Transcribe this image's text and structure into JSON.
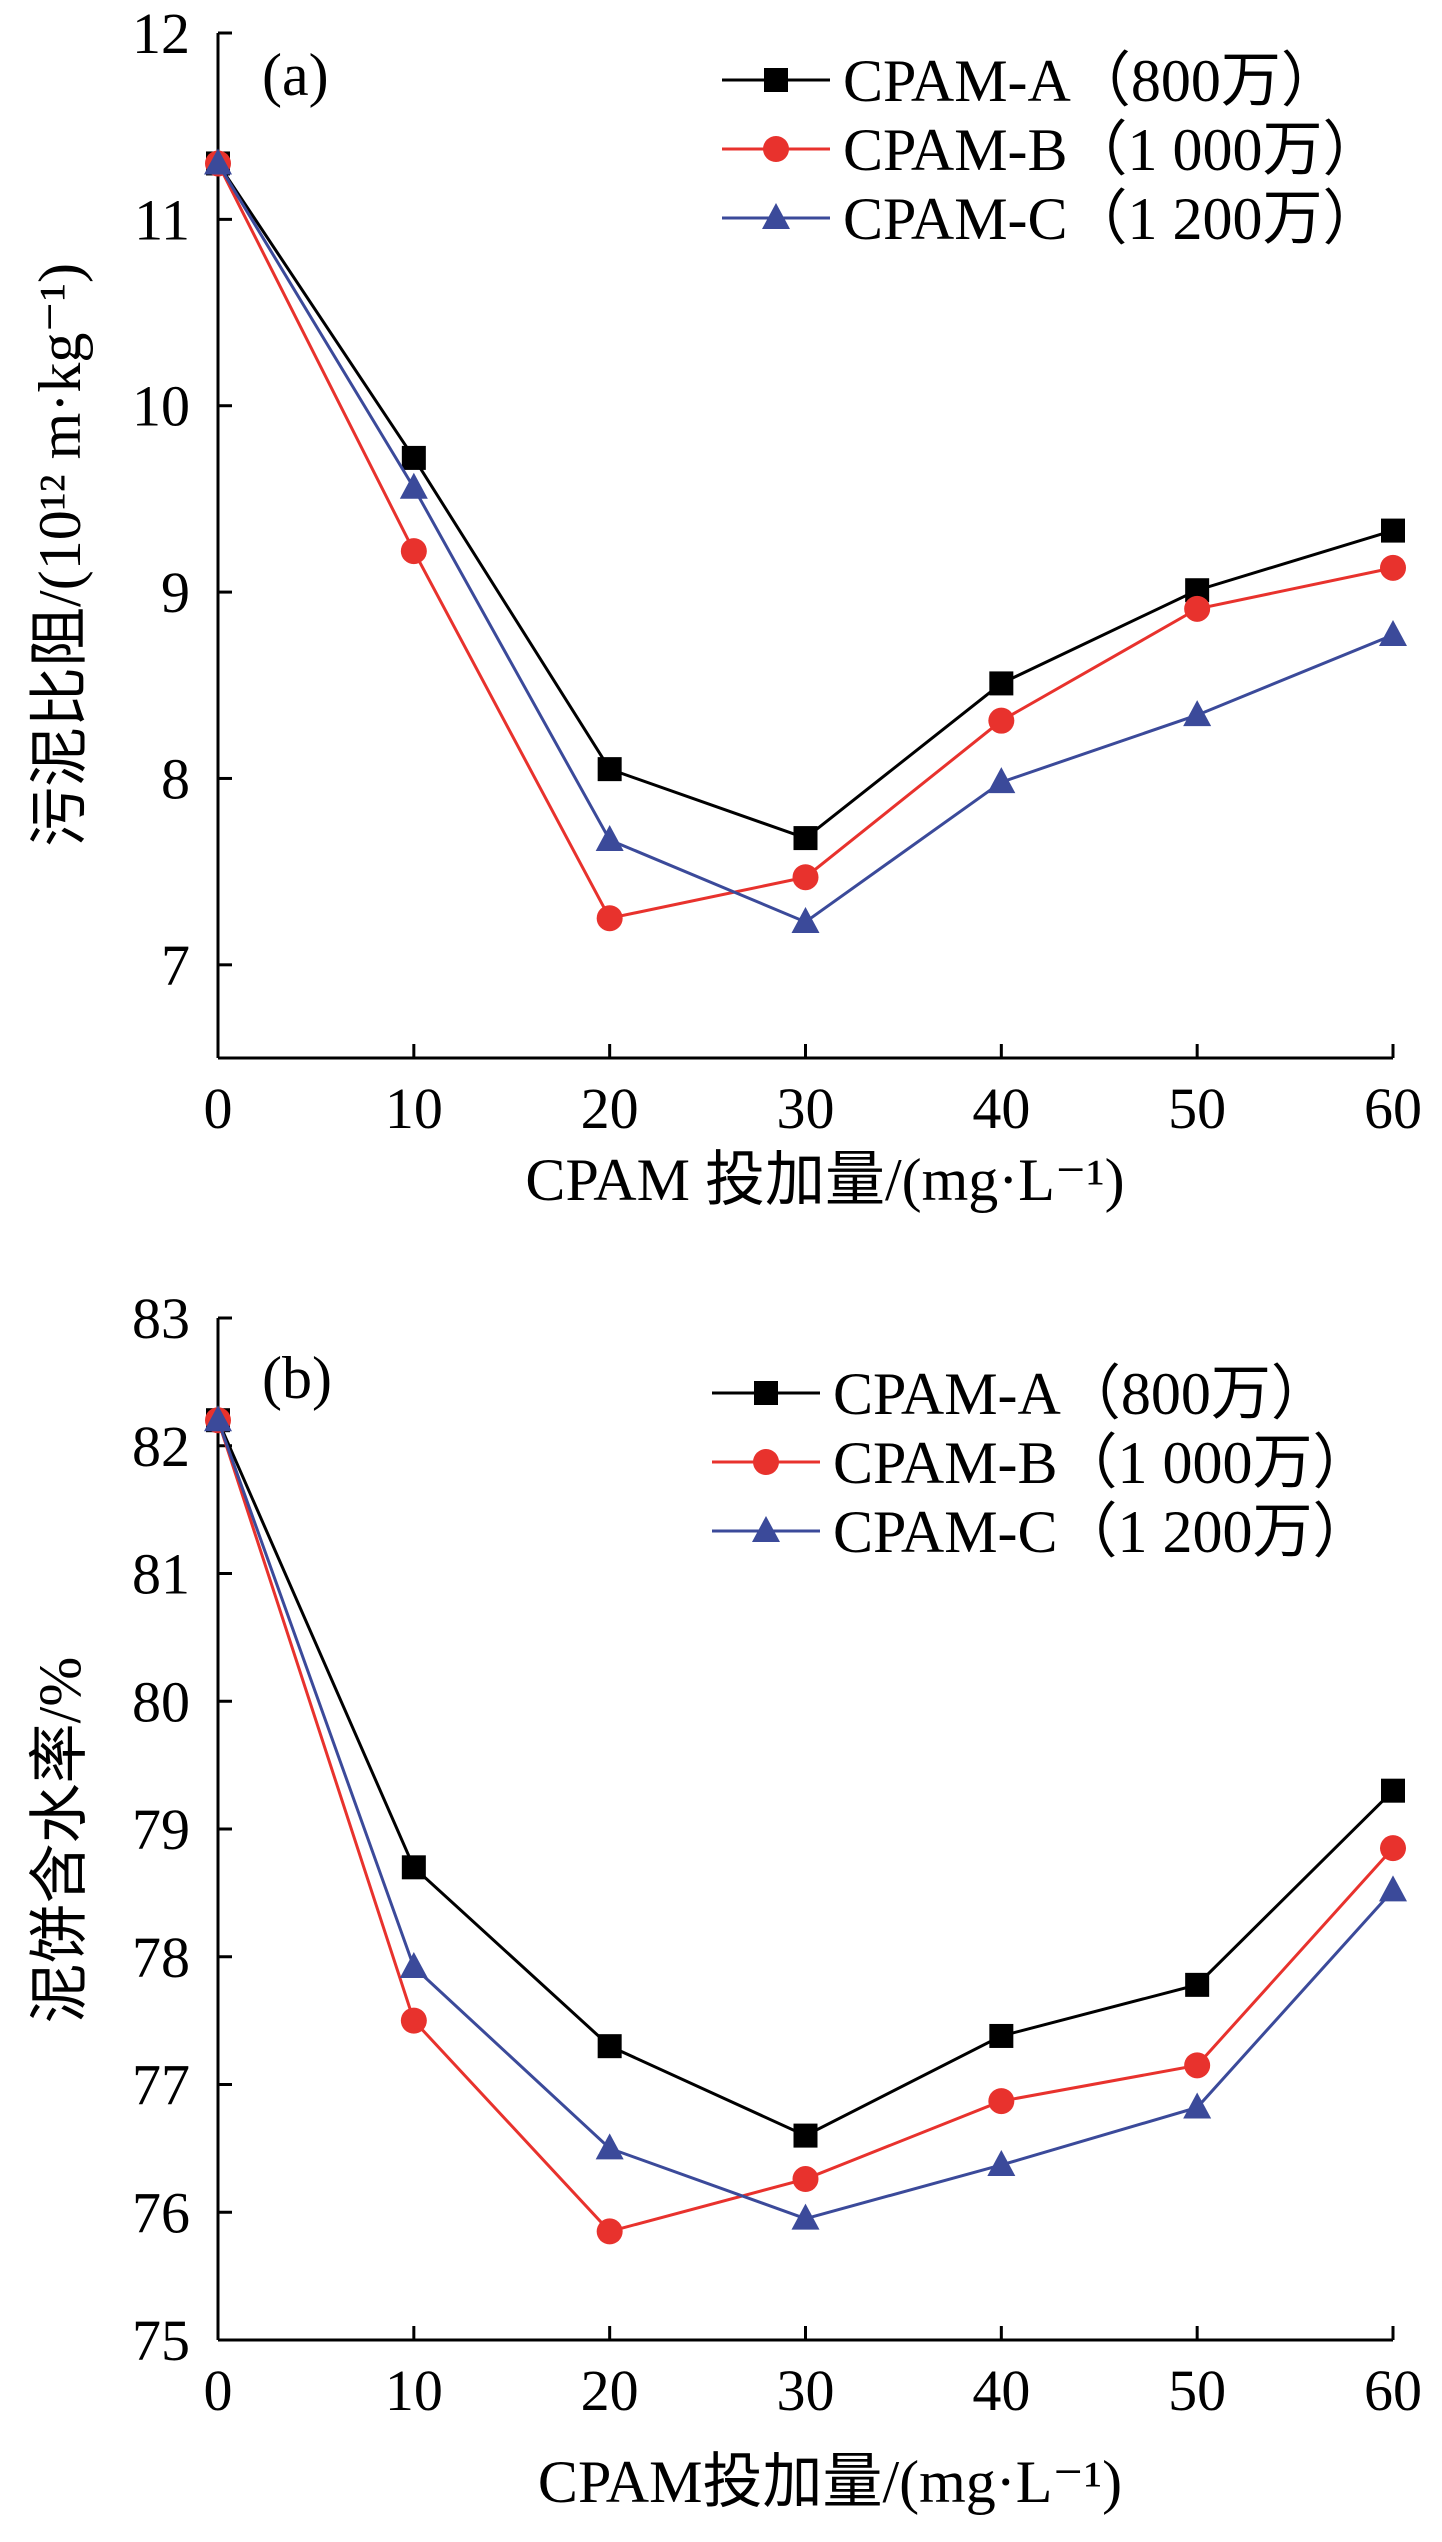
{
  "chart_data": [
    {
      "type": "line",
      "panel_label": "(a)",
      "xlabel": "CPAM 投加量/(mg·L⁻¹)",
      "ylabel": "污泥比阻/(10¹² m·kg⁻¹)",
      "xlim": [
        0,
        60
      ],
      "ylim": [
        6.5,
        12
      ],
      "xticks": [
        "0",
        "10",
        "20",
        "30",
        "40",
        "50",
        "60"
      ],
      "yticks": [
        "7",
        "8",
        "9",
        "10",
        "11",
        "12"
      ],
      "grid": false,
      "legend_position": "top-right",
      "x": [
        0,
        10,
        20,
        30,
        40,
        50,
        60
      ],
      "series": [
        {
          "name": "CPAM-A（800万）",
          "color": "#000000",
          "marker": "square",
          "values": [
            11.3,
            9.72,
            8.05,
            7.68,
            8.51,
            9.01,
            9.33
          ]
        },
        {
          "name": "CPAM-B（1 000万）",
          "color": "#e8322d",
          "marker": "circle",
          "values": [
            11.3,
            9.22,
            7.25,
            7.47,
            8.31,
            8.91,
            9.13
          ]
        },
        {
          "name": "CPAM-C（1 200万）",
          "color": "#3b4a9a",
          "marker": "triangle",
          "values": [
            11.3,
            9.56,
            7.67,
            7.23,
            7.98,
            8.34,
            8.77
          ]
        }
      ]
    },
    {
      "type": "line",
      "panel_label": "(b)",
      "xlabel": "CPAM投加量/(mg·L⁻¹)",
      "ylabel": "泥饼含水率/%",
      "xlim": [
        0,
        60
      ],
      "ylim": [
        75,
        83
      ],
      "xticks": [
        "0",
        "10",
        "20",
        "30",
        "40",
        "50",
        "60"
      ],
      "yticks": [
        "75",
        "76",
        "77",
        "78",
        "79",
        "80",
        "81",
        "82",
        "83"
      ],
      "grid": false,
      "legend_position": "top-right",
      "x": [
        0,
        10,
        20,
        30,
        40,
        50,
        60
      ],
      "series": [
        {
          "name": "CPAM-A（800万）",
          "color": "#000000",
          "marker": "square",
          "values": [
            82.2,
            78.7,
            77.3,
            76.6,
            77.38,
            77.78,
            79.3
          ]
        },
        {
          "name": "CPAM-B（1 000万）",
          "color": "#e8322d",
          "marker": "circle",
          "values": [
            82.2,
            77.5,
            75.85,
            76.26,
            76.87,
            77.15,
            78.85
          ]
        },
        {
          "name": "CPAM-C（1 200万）",
          "color": "#3b4a9a",
          "marker": "triangle",
          "values": [
            82.2,
            77.92,
            76.5,
            75.95,
            76.37,
            76.82,
            78.52
          ]
        }
      ]
    }
  ]
}
